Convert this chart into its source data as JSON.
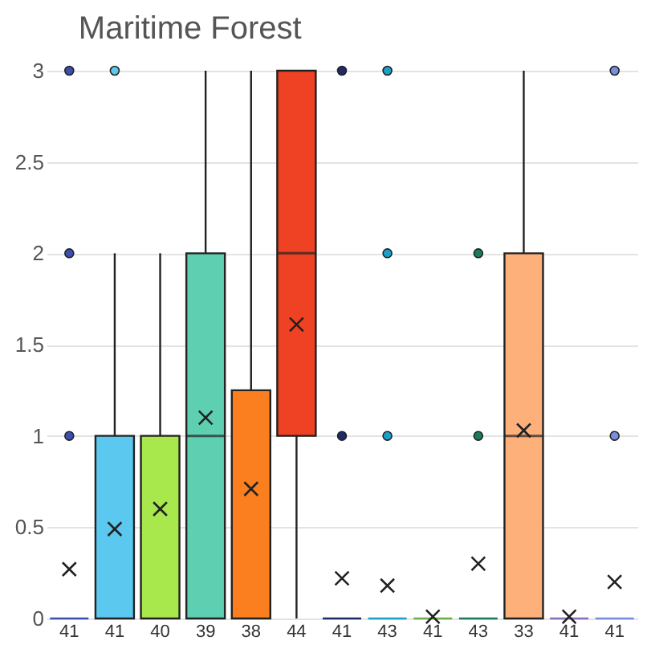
{
  "chart_data": {
    "type": "box",
    "title": "Maritime Forest",
    "categories": [
      "41",
      "41",
      "40",
      "39",
      "38",
      "44",
      "41",
      "43",
      "41",
      "43",
      "33",
      "41",
      "41"
    ],
    "boxes": [
      {
        "low": 0,
        "q1": 0,
        "median": 0,
        "q3": 0,
        "high": 0,
        "mean": 0.27,
        "outliers": [
          1,
          2,
          3
        ]
      },
      {
        "low": 0,
        "q1": 0,
        "median": 0,
        "q3": 1,
        "high": 2,
        "mean": 0.49,
        "outliers": [
          3
        ]
      },
      {
        "low": 0,
        "q1": 0,
        "median": 0,
        "q3": 1,
        "high": 2,
        "mean": 0.6
      },
      {
        "low": 0,
        "q1": 0,
        "median": 1,
        "q3": 2,
        "high": 3,
        "mean": 1.1
      },
      {
        "low": 0,
        "q1": 0,
        "median": 0,
        "q3": 1.25,
        "high": 3,
        "mean": 0.71
      },
      {
        "low": 0,
        "q1": 1,
        "median": 2,
        "q3": 3,
        "high": 3,
        "mean": 1.61
      },
      {
        "low": 0,
        "q1": 0,
        "median": 0,
        "q3": 0,
        "high": 0,
        "mean": 0.22,
        "outliers": [
          1,
          3
        ]
      },
      {
        "low": 0,
        "q1": 0,
        "median": 0,
        "q3": 0,
        "high": 0,
        "mean": 0.18,
        "outliers": [
          1,
          2,
          3
        ]
      },
      {
        "low": 0,
        "q1": 0,
        "median": 0,
        "q3": 0,
        "high": 0,
        "mean": 0.01
      },
      {
        "low": 0,
        "q1": 0,
        "median": 0,
        "q3": 0,
        "high": 0,
        "mean": 0.3,
        "outliers": [
          1,
          2
        ]
      },
      {
        "low": 0,
        "q1": 0,
        "median": 1,
        "q3": 2,
        "high": 3,
        "mean": 1.03
      },
      {
        "low": 0,
        "q1": 0,
        "median": 0,
        "q3": 0,
        "high": 0,
        "mean": 0.01
      },
      {
        "low": 0,
        "q1": 0,
        "median": 0,
        "q3": 0,
        "high": 0,
        "mean": 0.2,
        "outliers": [
          1,
          3
        ]
      }
    ],
    "colors": [
      "#3a4fb0",
      "#5bc8f0",
      "#a8e84c",
      "#5ecfb0",
      "#fb7f1e",
      "#ef4123",
      "#1f2a6b",
      "#1ba0c8",
      "#6ab04c",
      "#1a7a5e",
      "#fdb07a",
      "#8a6fc0",
      "#7b8de0"
    ],
    "ylim": [
      0,
      3
    ],
    "yticks": [
      0,
      0.5,
      1,
      1.5,
      2,
      2.5,
      3
    ],
    "grid": "y",
    "marker": "cross"
  }
}
